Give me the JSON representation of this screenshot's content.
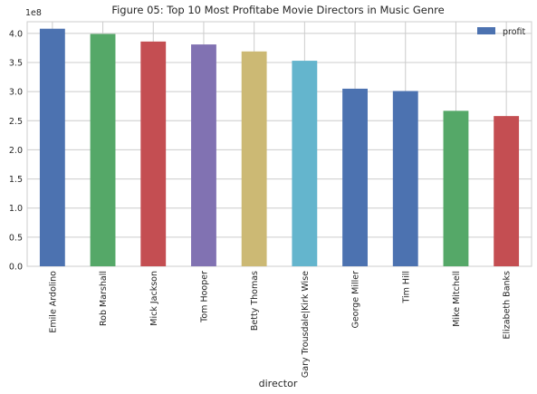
{
  "chart_data": {
    "type": "bar",
    "title": "Figure 05: Top 10 Most Profitabe Movie Directors in Music Genre",
    "xlabel": "director",
    "ylabel": "",
    "y_offset_label": "1e8",
    "categories": [
      "Emile Ardolino",
      "Rob Marshall",
      "Mick Jackson",
      "Tom Hooper",
      "Betty Thomas",
      "Gary Trousdale|Kirk Wise",
      "George Miller",
      "Tim Hill",
      "Mike Mitchell",
      "Elizabeth Banks"
    ],
    "series": [
      {
        "name": "profit",
        "values": [
          4.08,
          3.99,
          3.86,
          3.81,
          3.69,
          3.53,
          3.05,
          3.01,
          2.67,
          2.58
        ]
      }
    ],
    "ylim": [
      0,
      4.2
    ],
    "yticks": [
      "0.0",
      "0.5",
      "1.0",
      "1.5",
      "2.0",
      "2.5",
      "3.0",
      "3.5",
      "4.0"
    ],
    "grid": true,
    "legend_position": "top-right",
    "bar_colors": [
      "#4c72b0",
      "#55a868",
      "#c44e52",
      "#8172b2",
      "#ccb974",
      "#64b5cd",
      "#4c72b0",
      "#4c72b0",
      "#55a868",
      "#c44e52"
    ],
    "colors": {
      "grid": "#cccccc",
      "text": "#262626",
      "background": "#ffffff"
    }
  }
}
